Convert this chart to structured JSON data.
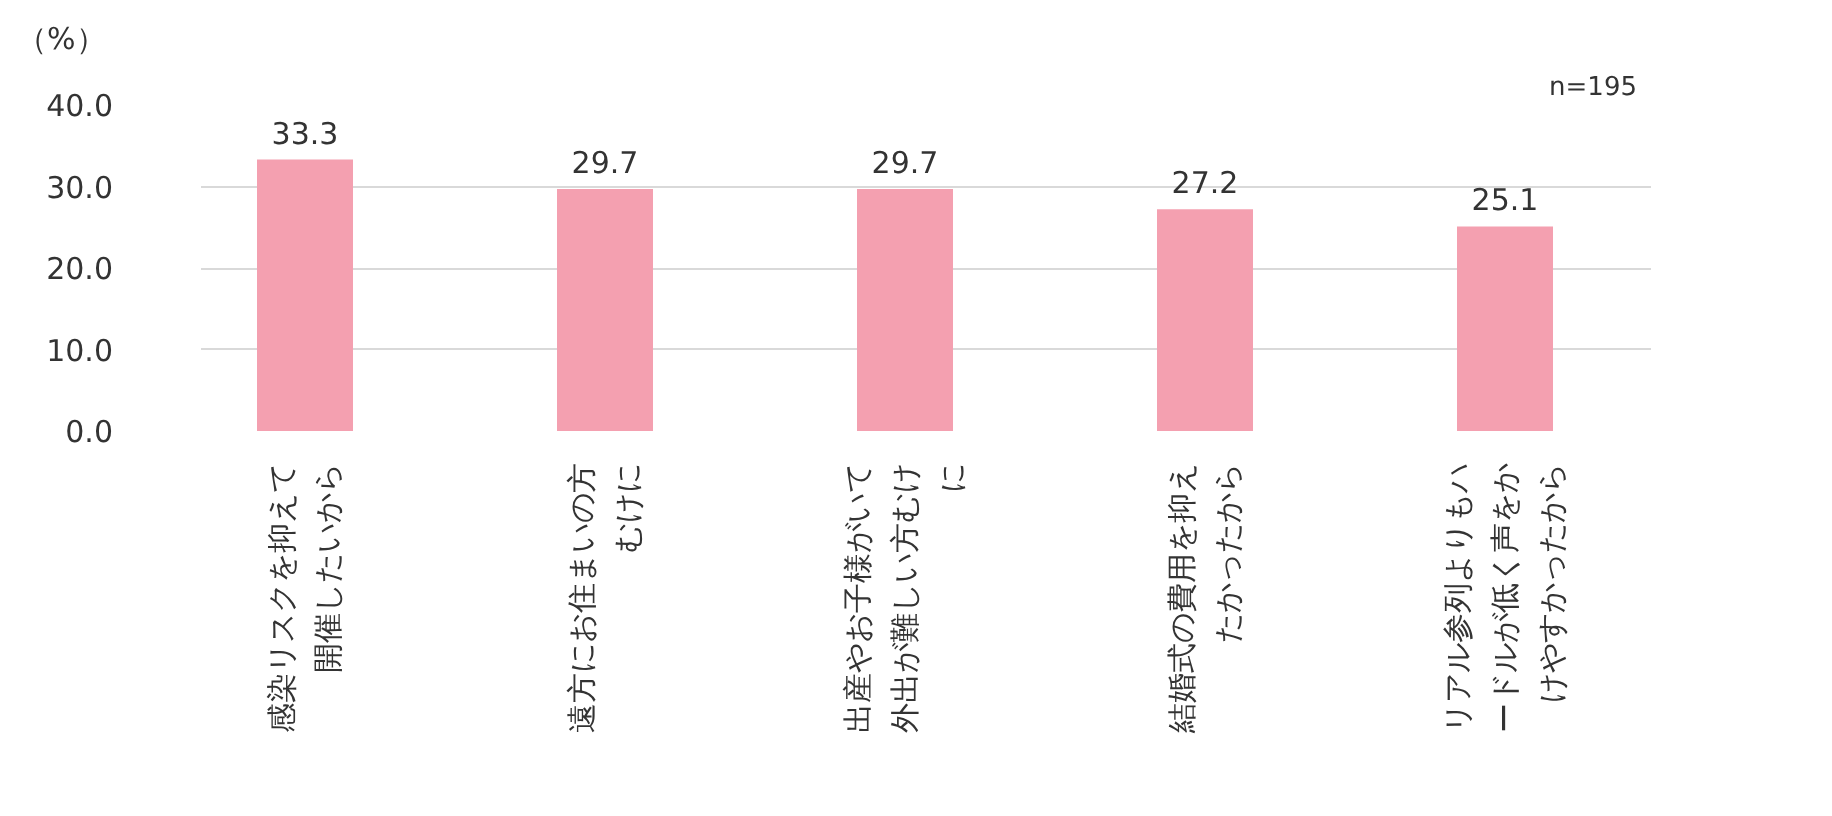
{
  "chart_data": {
    "type": "bar",
    "ylabel": "（%）",
    "categories": [
      "感染リスクを抑えて開催したいから",
      "遠方にお住まいの方むけに",
      "出産やお子様がいて外出が難しい方むけに",
      "結婚式の費用を抑えたかったから",
      "リアル参列よりもハードルが低く声をかけやすかったから"
    ],
    "values": [
      33.3,
      29.7,
      29.7,
      27.2,
      25.1
    ],
    "color": "#f4a0b0",
    "ylim": [
      0,
      40
    ],
    "yticks": [
      {
        "value": 0,
        "label": "0.0"
      },
      {
        "value": 10,
        "label": "10.0"
      },
      {
        "value": 20,
        "label": "20.0"
      },
      {
        "value": 30,
        "label": "30.0"
      },
      {
        "value": 40,
        "label": "40.0"
      }
    ],
    "grid": "y",
    "data_labels": true,
    "annotations": [
      "n=195"
    ]
  }
}
